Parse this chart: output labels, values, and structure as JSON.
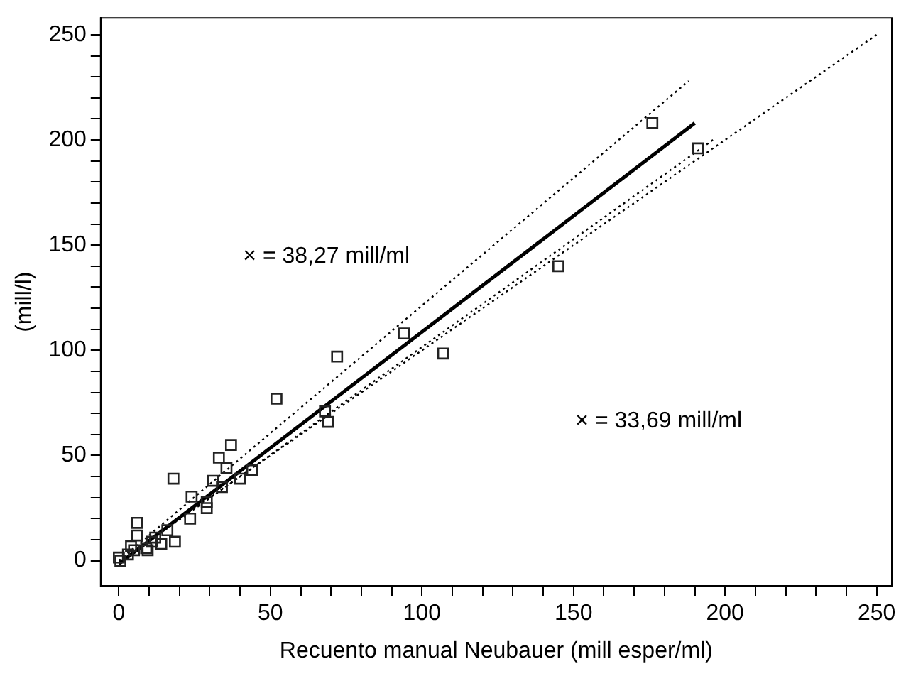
{
  "chart_data": {
    "type": "scatter",
    "xlabel": "Recuento manual Neubauer (mill esper/ml)",
    "ylabel": "(mill/l)",
    "xlim": [
      -6,
      255
    ],
    "ylim": [
      -12,
      258
    ],
    "xticks": [
      0,
      {
        "value": 10,
        "label": null
      },
      {
        "value": 20,
        "label": null
      },
      {
        "value": 30,
        "label": null
      },
      {
        "value": 40,
        "label": null
      },
      50,
      {
        "value": 60,
        "label": null
      },
      {
        "value": 70,
        "label": null
      },
      {
        "value": 80,
        "label": null
      },
      {
        "value": 90,
        "label": null
      },
      100,
      {
        "value": 110,
        "label": null
      },
      {
        "value": 120,
        "label": null
      },
      {
        "value": 130,
        "label": null
      },
      {
        "value": 140,
        "label": null
      },
      150,
      {
        "value": 160,
        "label": null
      },
      {
        "value": 170,
        "label": null
      },
      {
        "value": 180,
        "label": null
      },
      {
        "value": 190,
        "label": null
      },
      200,
      {
        "value": 210,
        "label": null
      },
      {
        "value": 220,
        "label": null
      },
      {
        "value": 230,
        "label": null
      },
      {
        "value": 240,
        "label": null
      },
      250
    ],
    "yticks": [
      0,
      {
        "value": 10,
        "label": null
      },
      {
        "value": 20,
        "label": null
      },
      {
        "value": 30,
        "label": null
      },
      {
        "value": 40,
        "label": null
      },
      50,
      {
        "value": 60,
        "label": null
      },
      {
        "value": 70,
        "label": null
      },
      {
        "value": 80,
        "label": null
      },
      {
        "value": 90,
        "label": null
      },
      100,
      {
        "value": 110,
        "label": null
      },
      {
        "value": 120,
        "label": null
      },
      {
        "value": 130,
        "label": null
      },
      {
        "value": 140,
        "label": null
      },
      150,
      {
        "value": 160,
        "label": null
      },
      {
        "value": 170,
        "label": null
      },
      {
        "value": 180,
        "label": null
      },
      {
        "value": 190,
        "label": null
      },
      200,
      {
        "value": 210,
        "label": null
      },
      {
        "value": 220,
        "label": null
      },
      {
        "value": 230,
        "label": null
      },
      {
        "value": 240,
        "label": null
      },
      250
    ],
    "grid": false,
    "legend": false,
    "series": [
      {
        "type": "scatter",
        "marker": "square",
        "color": "#222222",
        "x": [
          176,
          191,
          145,
          94,
          72,
          107,
          52,
          68,
          69,
          37,
          33,
          44,
          35.5,
          40,
          31,
          34,
          18,
          24,
          29,
          29,
          23.5,
          6,
          18.5,
          14,
          16,
          6,
          11,
          9,
          5,
          3,
          0.5,
          0,
          12,
          9.5,
          4
        ],
        "values": [
          208,
          196,
          140,
          108,
          97,
          98.5,
          77,
          71,
          66,
          55,
          49,
          43,
          44,
          39,
          38,
          35,
          39,
          30.5,
          25,
          28,
          20,
          18,
          9,
          8,
          14.5,
          12,
          9,
          6,
          5,
          3,
          0,
          1.5,
          11,
          5,
          7
        ]
      },
      {
        "type": "line",
        "marker": "none",
        "line_style": "solid",
        "color": "#000000",
        "x": [
          0,
          190
        ],
        "values": [
          -1.5,
          208
        ]
      },
      {
        "type": "line",
        "marker": "none",
        "line_style": "dotted",
        "color": "#000000",
        "x": [
          0,
          188
        ],
        "values": [
          0,
          228
        ]
      },
      {
        "type": "line",
        "marker": "none",
        "line_style": "dotted",
        "color": "#000000",
        "x": [
          0,
          196
        ],
        "values": [
          -1,
          200
        ]
      },
      {
        "type": "line",
        "marker": "none",
        "line_style": "dotted",
        "color": "#000000",
        "x": [
          0,
          250
        ],
        "values": [
          0,
          250
        ]
      }
    ],
    "annotations": [
      "× = 38,27 mill/ml",
      "× = 33,69 mill/ml"
    ]
  }
}
